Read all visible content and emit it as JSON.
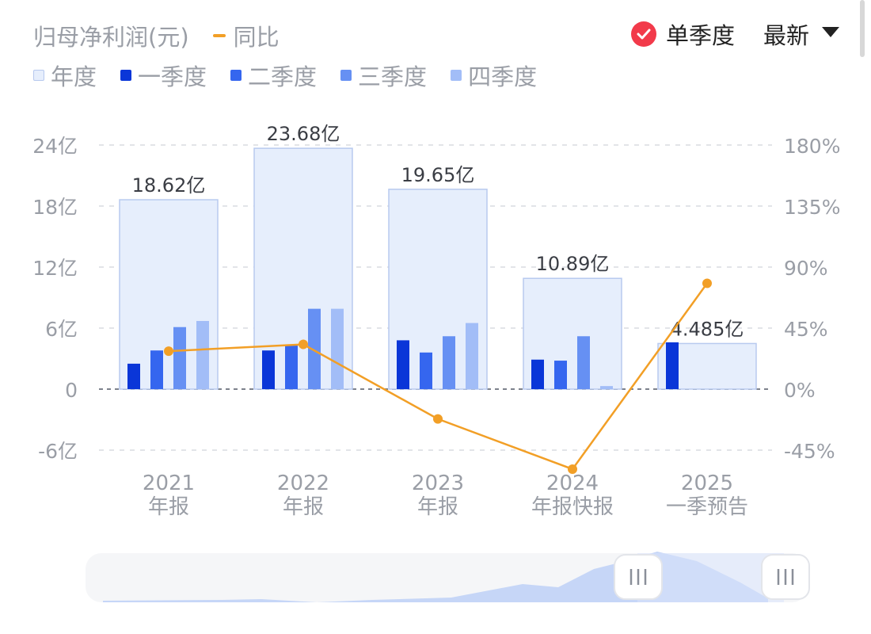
{
  "header": {
    "title": "归母净利润(元)",
    "yoy_label": "同比",
    "single_quarter_label": "单季度",
    "latest_label": "最新"
  },
  "legend": {
    "items": [
      {
        "label": "年度",
        "color": "#e6eefc",
        "border": "#b6c8ee"
      },
      {
        "label": "一季度",
        "color": "#0a36d8"
      },
      {
        "label": "二季度",
        "color": "#3566ef"
      },
      {
        "label": "三季度",
        "color": "#6690f3"
      },
      {
        "label": "四季度",
        "color": "#a2bdf7"
      }
    ]
  },
  "colors": {
    "annual_fill": "#e6eefc",
    "annual_border": "#b8caef",
    "yoy_line": "#f29f26",
    "axis_text": "#9a9ea6",
    "grid": "#d9dbe0",
    "check": "#f23a4a"
  },
  "chart_data": {
    "type": "bar",
    "categories": [
      {
        "year": "2021",
        "period": "年报"
      },
      {
        "year": "2022",
        "period": "年报"
      },
      {
        "year": "2023",
        "period": "年报"
      },
      {
        "year": "2024",
        "period": "年报快报"
      },
      {
        "year": "2025",
        "period": "一季预告"
      }
    ],
    "annual": {
      "values": [
        18.62,
        23.68,
        19.65,
        10.89,
        4.485
      ],
      "labels": [
        "18.62亿",
        "23.68亿",
        "19.65亿",
        "10.89亿",
        "4.485亿"
      ]
    },
    "series": [
      {
        "name": "一季度",
        "values": [
          2.5,
          3.8,
          4.8,
          2.9,
          4.6
        ]
      },
      {
        "name": "二季度",
        "values": [
          3.8,
          4.4,
          3.6,
          2.8,
          null
        ]
      },
      {
        "name": "三季度",
        "values": [
          6.1,
          7.9,
          5.2,
          5.2,
          null
        ]
      },
      {
        "name": "四季度",
        "values": [
          6.7,
          7.9,
          6.5,
          0.3,
          null
        ]
      }
    ],
    "yoy": {
      "name": "同比",
      "values": [
        28,
        33,
        -22,
        -59,
        78
      ]
    },
    "y_left": {
      "min": -6,
      "max": 24,
      "ticks": [
        24,
        18,
        12,
        6,
        0,
        -6
      ],
      "tick_labels": [
        "24亿",
        "18亿",
        "12亿",
        "6亿",
        "0",
        "-6亿"
      ]
    },
    "y_right": {
      "min": -45,
      "max": 180,
      "ticks": [
        180,
        135,
        90,
        45,
        0,
        -45
      ],
      "tick_labels": [
        "180%",
        "135%",
        "90%",
        "45%",
        "0%",
        "-45%"
      ]
    },
    "grid": true,
    "legend_position": "top-left"
  },
  "slider": {
    "left_handle_icon": "grip-lines-icon",
    "right_handle_icon": "grip-lines-icon"
  }
}
